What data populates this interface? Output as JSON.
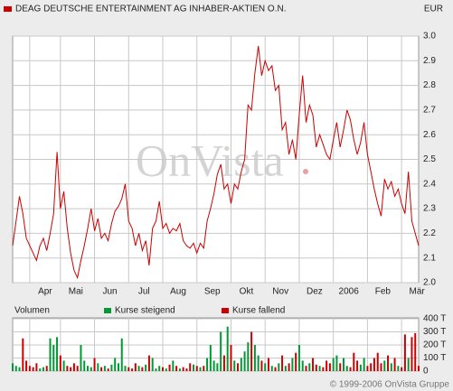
{
  "chart_data": [
    {
      "type": "line",
      "title": "DEAG DEUTSCHE ENTERTAINMENT AG INHABER-AKTIEN O.N.",
      "currency": "EUR",
      "watermark": "OnVista",
      "color": "#cc0000",
      "grid": true,
      "values": [
        2.15,
        2.25,
        2.35,
        2.28,
        2.18,
        2.15,
        2.12,
        2.09,
        2.15,
        2.18,
        2.13,
        2.2,
        2.28,
        2.53,
        2.3,
        2.37,
        2.22,
        2.12,
        2.05,
        2.02,
        2.09,
        2.15,
        2.22,
        2.3,
        2.21,
        2.26,
        2.18,
        2.2,
        2.17,
        2.24,
        2.29,
        2.31,
        2.34,
        2.4,
        2.25,
        2.22,
        2.15,
        2.2,
        2.13,
        2.17,
        2.07,
        2.22,
        2.25,
        2.33,
        2.22,
        2.24,
        2.2,
        2.22,
        2.21,
        2.24,
        2.17,
        2.15,
        2.14,
        2.16,
        2.12,
        2.16,
        2.14,
        2.25,
        2.3,
        2.36,
        2.44,
        2.48,
        2.38,
        2.4,
        2.32,
        2.4,
        2.38,
        2.45,
        2.5,
        2.72,
        2.7,
        2.85,
        2.96,
        2.84,
        2.9,
        2.86,
        2.88,
        2.78,
        2.8,
        2.62,
        2.65,
        2.52,
        2.58,
        2.5,
        2.68,
        2.84,
        2.65,
        2.72,
        2.68,
        2.55,
        2.6,
        2.56,
        2.52,
        2.5,
        2.58,
        2.65,
        2.55,
        2.62,
        2.7,
        2.66,
        2.58,
        2.52,
        2.57,
        2.65,
        2.52,
        2.45,
        2.38,
        2.32,
        2.27,
        2.42,
        2.38,
        2.41,
        2.35,
        2.38,
        2.32,
        2.28,
        2.45,
        2.25,
        2.2,
        2.15
      ],
      "xlim": [
        0,
        119
      ],
      "xticks": [
        {
          "value": 5,
          "label": "Apr"
        },
        {
          "value": 14,
          "label": "Mai"
        },
        {
          "value": 24,
          "label": "Jun"
        },
        {
          "value": 34,
          "label": "Jul"
        },
        {
          "value": 44,
          "label": "Aug"
        },
        {
          "value": 54,
          "label": "Sep"
        },
        {
          "value": 64,
          "label": "Okt"
        },
        {
          "value": 74,
          "label": "Nov"
        },
        {
          "value": 84,
          "label": "Dez"
        },
        {
          "value": 94,
          "label": "2006"
        },
        {
          "value": 104,
          "label": "Feb"
        },
        {
          "value": 114,
          "label": "Mär"
        }
      ],
      "ylim": [
        2,
        3
      ],
      "yticks": [
        {
          "value": 2,
          "label": "2.0"
        },
        2.1,
        2.2,
        2.3,
        2.4,
        2.5,
        2.6,
        2.7,
        2.8,
        2.9,
        {
          "value": 3,
          "label": "3.0"
        }
      ]
    },
    {
      "type": "bar",
      "title": "Volumen",
      "grid": true,
      "legend": [
        {
          "name": "Kurse steigend",
          "color": "#009933"
        },
        {
          "name": "Kurse fallend",
          "color": "#cc0000"
        }
      ],
      "values": [
        60,
        40,
        30,
        250,
        80,
        40,
        30,
        60,
        20,
        30,
        40,
        250,
        200,
        260,
        120,
        80,
        40,
        30,
        60,
        40,
        200,
        80,
        40,
        30,
        100,
        60,
        30,
        40,
        20,
        50,
        100,
        60,
        250,
        40,
        30,
        20,
        60,
        40,
        30,
        50,
        120,
        100,
        20,
        40,
        30,
        20,
        50,
        80,
        40,
        20,
        30,
        20,
        60,
        50,
        40,
        30,
        40,
        100,
        200,
        80,
        60,
        300,
        120,
        340,
        200,
        80,
        60,
        100,
        150,
        220,
        300,
        200,
        120,
        80,
        60,
        100,
        40,
        30,
        60,
        120,
        40,
        60,
        100,
        140,
        200,
        80,
        40,
        60,
        100,
        50,
        40,
        30,
        80,
        60,
        100,
        120,
        60,
        100,
        40,
        30,
        140,
        80,
        50,
        100,
        40,
        60,
        100,
        140,
        60,
        80,
        120,
        60,
        100,
        40,
        30,
        280,
        100,
        260,
        290,
        40
      ],
      "ylim": [
        0,
        400
      ],
      "yticks": [
        0,
        {
          "value": 100,
          "label": "100 T"
        },
        {
          "value": 200,
          "label": "200 T"
        },
        {
          "value": 300,
          "label": "300 T"
        },
        {
          "value": 400,
          "label": "400 T"
        }
      ]
    }
  ],
  "footer": "© 1999-2006 OnVista Gruppe"
}
